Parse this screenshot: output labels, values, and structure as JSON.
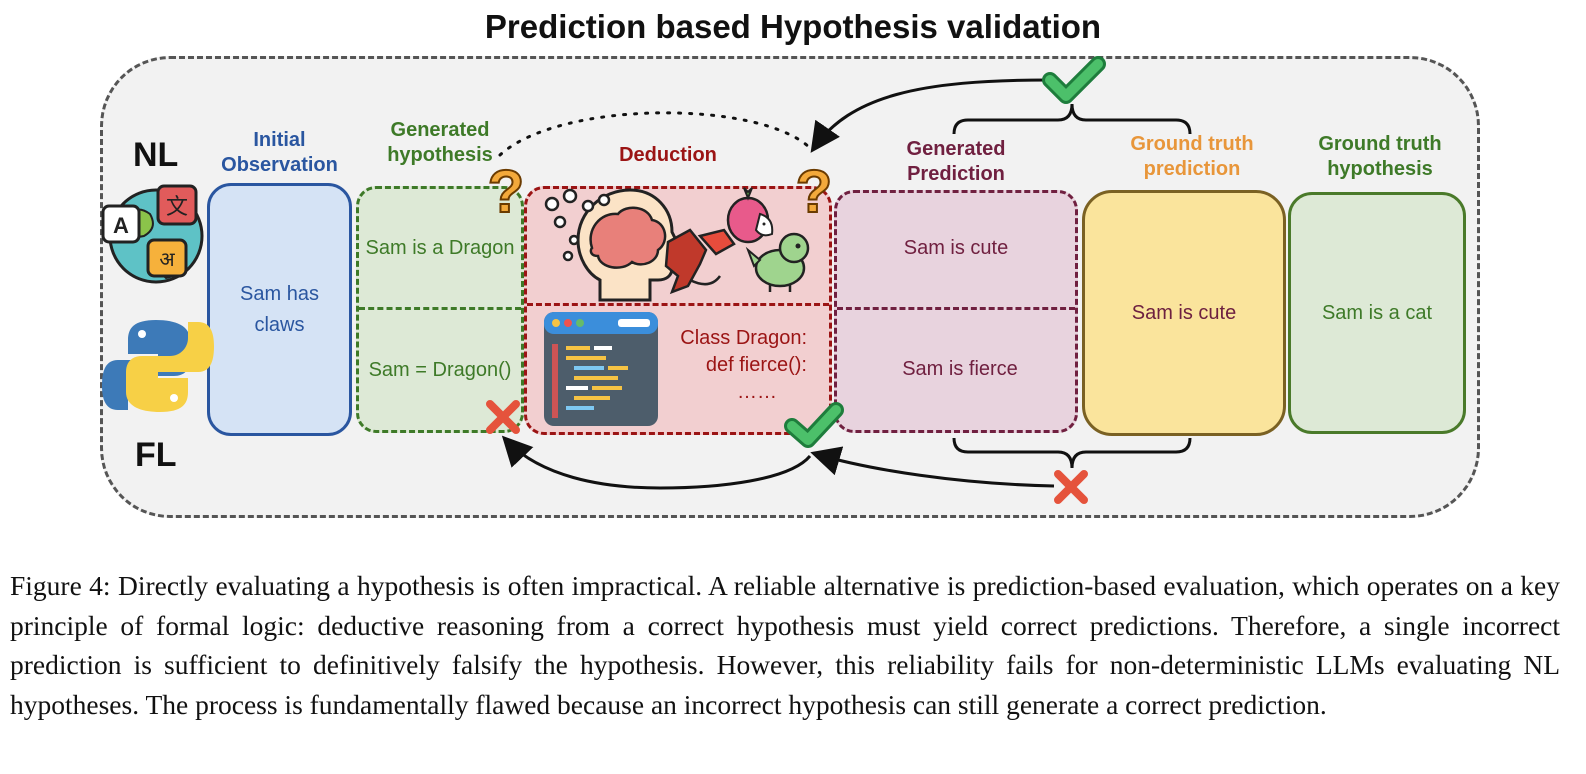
{
  "title": "Prediction based Hypothesis validation",
  "modes": {
    "nl": "NL",
    "fl": "FL"
  },
  "icons": {
    "nl": "globe-languages-icon",
    "fl": "python-logo-icon",
    "question": "question-mark-icon",
    "check": "check-mark-icon",
    "cross": "cross-mark-icon",
    "brain": "brain-thinking-icon",
    "dragon": "dragon-icon",
    "dragon_fruit": "dragon-fruit-icon",
    "baby_dragon": "baby-dragon-icon",
    "code": "code-editor-icon"
  },
  "columns": {
    "observation": {
      "header_l1": "Initial",
      "header_l2": "Observation",
      "text_l1": "Sam has",
      "text_l2": "claws"
    },
    "hypothesis": {
      "header_l1": "Generated",
      "header_l2": "hypothesis",
      "nl": "Sam is a Dragon",
      "fl": "Sam = Dragon()"
    },
    "deduction": {
      "header": "Deduction",
      "code_l1": "Class Dragon:",
      "code_l2": "def fierce():",
      "code_l3": "……"
    },
    "prediction": {
      "header_l1": "Generated",
      "header_l2": "Prediction",
      "nl": "Sam is cute",
      "fl": "Sam is fierce"
    },
    "gt_prediction": {
      "header_l1": "Ground truth",
      "header_l2": "prediction",
      "text": "Sam is cute"
    },
    "gt_hypothesis": {
      "header_l1": "Ground truth",
      "header_l2": "hypothesis",
      "text": "Sam is a cat"
    }
  },
  "colors": {
    "observation": "#2a56a0",
    "hypothesis": "#3e7a28",
    "deduction": "#9b1414",
    "prediction": "#702040",
    "gt_prediction": "#e8963a",
    "gt_hypothesis": "#3e7a28",
    "check": "#4cc06a",
    "cross": "#e5533c"
  },
  "caption": "Figure 4: Directly evaluating a hypothesis is often impractical. A reliable alternative is prediction-based evaluation, which operates on a key principle of formal logic: deductive reasoning from a correct hypothesis must yield correct predictions. Therefore, a single incorrect prediction is sufficient to definitively falsify the hypothesis. However, this reliability fails for non-deterministic LLMs evaluating NL hypotheses. The process is fundamentally flawed because an incorrect hypothesis can still generate a correct prediction."
}
